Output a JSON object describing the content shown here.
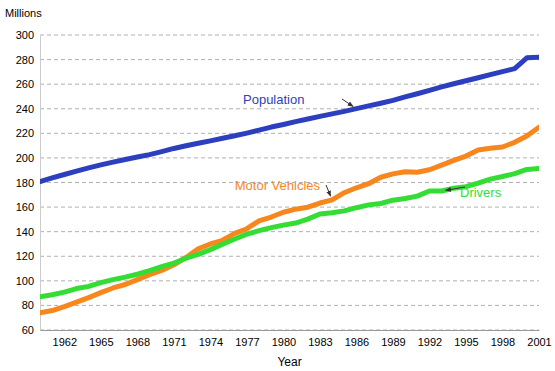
{
  "chart_data": {
    "type": "line",
    "y_label": "Millions",
    "x_label": "Year",
    "x": [
      1960,
      1961,
      1962,
      1963,
      1964,
      1965,
      1966,
      1967,
      1968,
      1969,
      1970,
      1971,
      1972,
      1973,
      1974,
      1975,
      1976,
      1977,
      1978,
      1979,
      1980,
      1981,
      1982,
      1983,
      1984,
      1985,
      1986,
      1987,
      1988,
      1989,
      1990,
      1991,
      1992,
      1993,
      1994,
      1995,
      1996,
      1997,
      1998,
      1999,
      2000,
      2001
    ],
    "series": [
      {
        "name": "Population",
        "color": "#2b3fbf",
        "values": [
          180.7,
          183.7,
          186.5,
          189.2,
          191.9,
          194.3,
          196.6,
          198.7,
          200.7,
          202.7,
          205.1,
          207.7,
          209.9,
          211.9,
          213.9,
          216.0,
          218.0,
          220.2,
          222.6,
          225.1,
          227.2,
          229.5,
          231.7,
          233.8,
          235.8,
          237.9,
          240.1,
          242.3,
          244.5,
          246.8,
          249.6,
          252.2,
          255.0,
          257.8,
          260.3,
          262.8,
          265.2,
          267.8,
          270.2,
          272.7,
          281.4,
          282
        ]
      },
      {
        "name": "Motor Vehicles",
        "color": "#f7861c",
        "values": [
          74,
          75.8,
          79,
          82.7,
          86.3,
          90.4,
          94.2,
          97,
          101,
          105,
          108.4,
          113,
          119,
          126,
          130,
          133,
          138.6,
          142.4,
          148.8,
          151.9,
          155.8,
          158.3,
          159.9,
          163.3,
          165.9,
          171.7,
          175.7,
          179,
          184.3,
          187,
          188.8,
          188.4,
          190.4,
          194.1,
          198,
          201.5,
          206.4,
          207.8,
          208.9,
          212.7,
          217.8,
          225
        ]
      },
      {
        "name": "Drivers",
        "color": "#33dd33",
        "values": [
          87,
          88.7,
          90.8,
          93.7,
          95.5,
          98.5,
          101,
          103,
          105.4,
          108.3,
          111.5,
          114.4,
          118.4,
          121.5,
          125.4,
          129.8,
          134,
          138,
          140.8,
          143.3,
          145.3,
          147,
          150.2,
          154.4,
          155.4,
          156.9,
          159.5,
          161.8,
          162.9,
          165.6,
          167,
          168.9,
          173.1,
          173.1,
          175.4,
          176.6,
          179.5,
          182.7,
          184.9,
          187.2,
          190.6,
          191.3
        ]
      }
    ],
    "xlim": [
      1960,
      2001
    ],
    "xticks": [
      1962,
      1965,
      1968,
      1971,
      1974,
      1977,
      1980,
      1983,
      1986,
      1989,
      1992,
      1995,
      1998,
      2001
    ],
    "ylim": [
      60,
      300
    ],
    "yticks": [
      60,
      80,
      100,
      120,
      140,
      160,
      180,
      200,
      220,
      240,
      260,
      280,
      300
    ],
    "grid": true
  }
}
